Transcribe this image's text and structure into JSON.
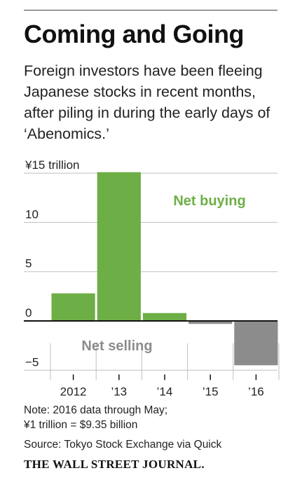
{
  "header": {
    "title": "Coming and Going",
    "subtitle": "Foreign investors have been fleeing Japanese stocks in recent months, after piling in during the early days of ‘Abenomics.’"
  },
  "chart_data": {
    "type": "bar",
    "categories": [
      "2012",
      "’13",
      "’14",
      "’15",
      "’16"
    ],
    "values": [
      2.8,
      15.1,
      0.8,
      -0.3,
      -4.5
    ],
    "ylim": [
      -6,
      15.5
    ],
    "yticks": [
      {
        "value": 15,
        "label": "¥15 trillion"
      },
      {
        "value": 10,
        "label": "10"
      },
      {
        "value": 5,
        "label": "5"
      },
      {
        "value": 0,
        "label": "0"
      },
      {
        "value": -5,
        "label": "−5"
      }
    ],
    "grid": true,
    "colors": {
      "positive": "#6eae46",
      "negative": "#8c8c8c"
    },
    "annotations": [
      {
        "text": "Net buying",
        "color": "#6eae46"
      },
      {
        "text": "Net selling",
        "color": "#8c8c8c"
      }
    ]
  },
  "footer": {
    "note_line1": "Note: 2016 data through May;",
    "note_line2": "¥1 trillion = $9.35 billion",
    "source": "Source: Tokyo Stock Exchange via Quick",
    "brand": "THE WALL STREET JOURNAL."
  }
}
